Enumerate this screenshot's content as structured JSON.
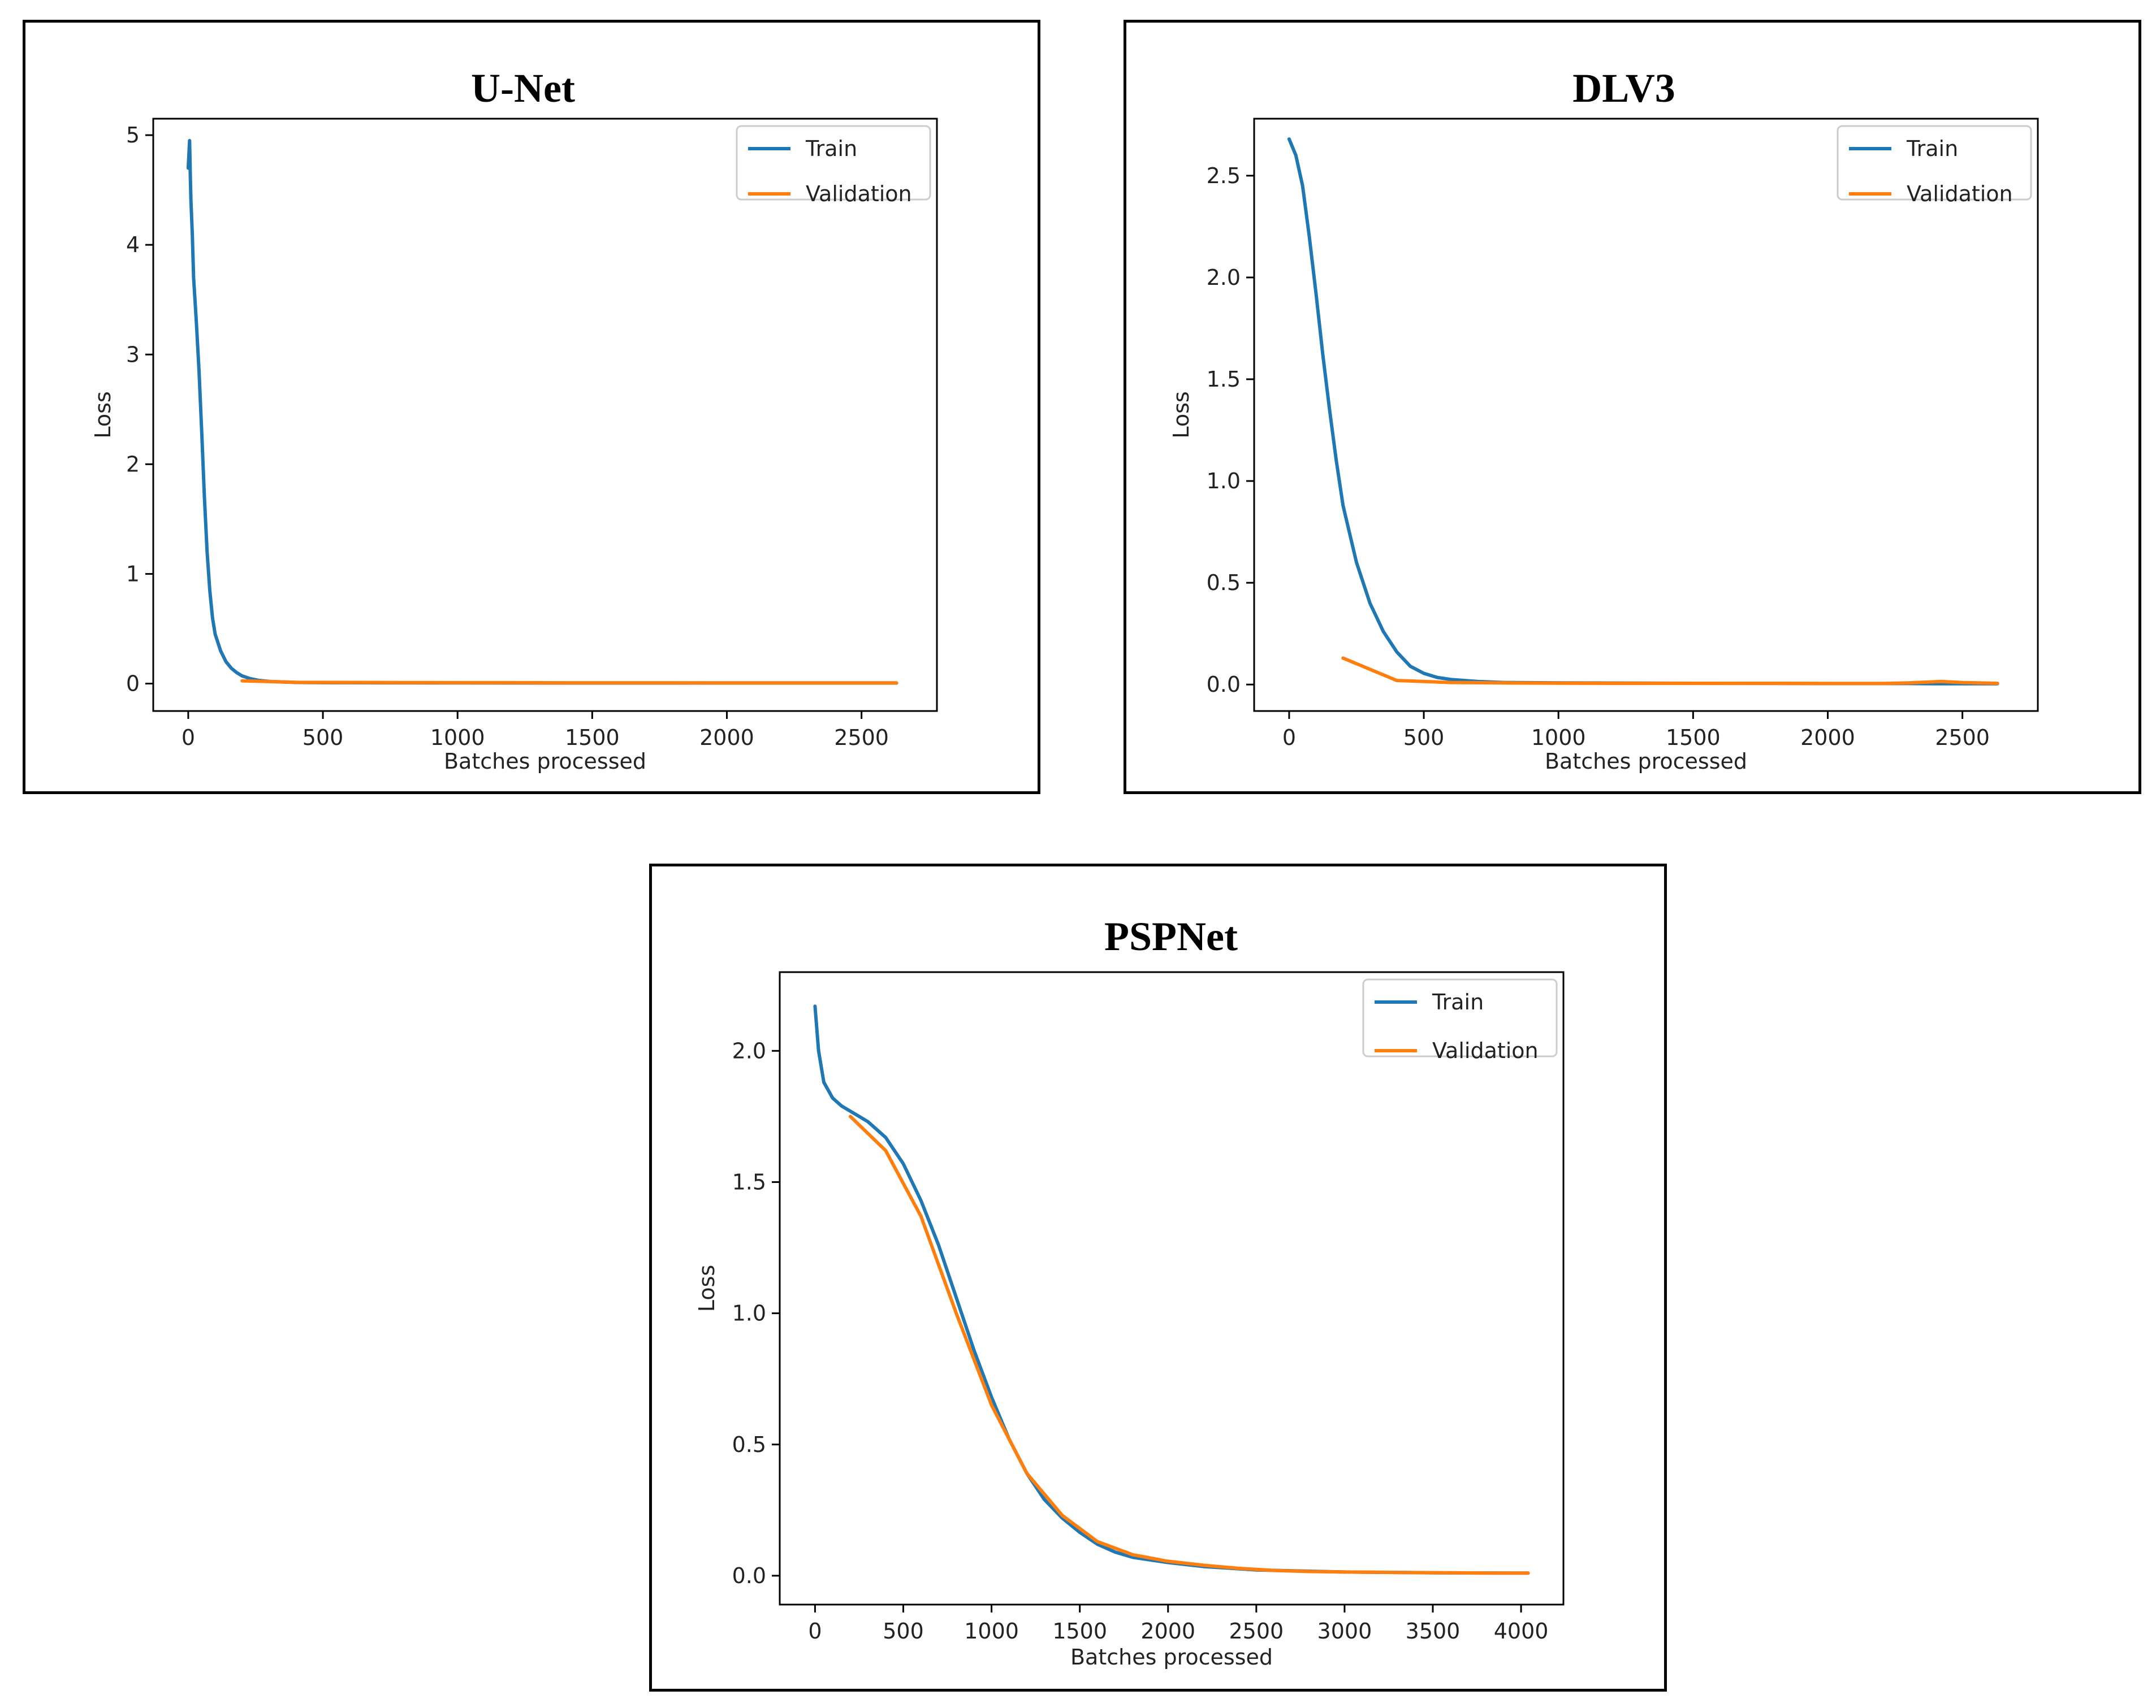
{
  "chart_data": [
    {
      "type": "line",
      "title": "U-Net",
      "xlabel": "Batches processed",
      "ylabel": "Loss",
      "xlim": [
        -130,
        2780
      ],
      "ylim": [
        -0.25,
        5.15
      ],
      "xticks": [
        "0",
        "500",
        "1000",
        "1500",
        "2000",
        "2500"
      ],
      "yticks": [
        "0",
        "1",
        "2",
        "3",
        "4",
        "5"
      ],
      "legend": "top-right",
      "series": [
        {
          "name": "Train",
          "color": "#1f77b4",
          "x": [
            0,
            5,
            8,
            10,
            15,
            20,
            30,
            40,
            50,
            60,
            70,
            80,
            90,
            100,
            120,
            140,
            160,
            180,
            200,
            230,
            260,
            300,
            350,
            400,
            500,
            700,
            1000,
            1500,
            2000,
            2500,
            2630
          ],
          "y": [
            4.7,
            4.95,
            4.6,
            4.4,
            4.1,
            3.7,
            3.3,
            2.85,
            2.3,
            1.7,
            1.2,
            0.85,
            0.6,
            0.45,
            0.3,
            0.2,
            0.14,
            0.1,
            0.07,
            0.045,
            0.03,
            0.02,
            0.015,
            0.01,
            0.008,
            0.007,
            0.006,
            0.005,
            0.005,
            0.005,
            0.005
          ]
        },
        {
          "name": "Validation",
          "color": "#ff7f0e",
          "x": [
            200,
            400,
            600,
            800,
            1000,
            1200,
            1400,
            1600,
            1800,
            2000,
            2200,
            2400,
            2630
          ],
          "y": [
            0.025,
            0.012,
            0.01,
            0.009,
            0.008,
            0.008,
            0.007,
            0.007,
            0.007,
            0.006,
            0.006,
            0.006,
            0.006
          ]
        }
      ]
    },
    {
      "type": "line",
      "title": "DLV3",
      "xlabel": "Batches processed",
      "ylabel": "Loss",
      "xlim": [
        -130,
        2780
      ],
      "ylim": [
        -0.13,
        2.78
      ],
      "xticks": [
        "0",
        "500",
        "1000",
        "1500",
        "2000",
        "2500"
      ],
      "yticks": [
        "0.0",
        "0.5",
        "1.0",
        "1.5",
        "2.0",
        "2.5"
      ],
      "legend": "top-right",
      "series": [
        {
          "name": "Train",
          "color": "#1f77b4",
          "x": [
            0,
            25,
            50,
            75,
            100,
            125,
            150,
            175,
            200,
            250,
            300,
            350,
            400,
            450,
            500,
            550,
            600,
            700,
            800,
            1000,
            1500,
            2000,
            2300,
            2400,
            2500,
            2630
          ],
          "y": [
            2.68,
            2.6,
            2.45,
            2.2,
            1.92,
            1.62,
            1.35,
            1.1,
            0.88,
            0.6,
            0.4,
            0.26,
            0.16,
            0.09,
            0.055,
            0.035,
            0.025,
            0.015,
            0.01,
            0.008,
            0.006,
            0.005,
            0.005,
            0.004,
            0.004,
            0.004
          ]
        },
        {
          "name": "Validation",
          "color": "#ff7f0e",
          "x": [
            200,
            400,
            600,
            800,
            1000,
            1200,
            1400,
            1600,
            1800,
            2000,
            2200,
            2300,
            2420,
            2500,
            2630
          ],
          "y": [
            0.13,
            0.02,
            0.01,
            0.008,
            0.007,
            0.006,
            0.006,
            0.006,
            0.006,
            0.005,
            0.005,
            0.008,
            0.015,
            0.01,
            0.006
          ]
        }
      ]
    },
    {
      "type": "line",
      "title": "PSPNet",
      "xlabel": "Batches processed",
      "ylabel": "Loss",
      "xlim": [
        -200,
        4240
      ],
      "ylim": [
        -0.11,
        2.3
      ],
      "xticks": [
        "0",
        "500",
        "1000",
        "1500",
        "2000",
        "2500",
        "3000",
        "3500",
        "4000"
      ],
      "yticks": [
        "0.0",
        "0.5",
        "1.0",
        "1.5",
        "2.0"
      ],
      "legend": "top-right",
      "series": [
        {
          "name": "Train",
          "color": "#1f77b4",
          "x": [
            0,
            20,
            50,
            100,
            150,
            200,
            300,
            400,
            500,
            600,
            700,
            800,
            900,
            1000,
            1100,
            1200,
            1300,
            1400,
            1500,
            1600,
            1700,
            1800,
            2000,
            2200,
            2500,
            3000,
            3500,
            4000,
            4040
          ],
          "y": [
            2.17,
            2.0,
            1.88,
            1.82,
            1.79,
            1.77,
            1.73,
            1.67,
            1.57,
            1.43,
            1.26,
            1.06,
            0.86,
            0.68,
            0.52,
            0.39,
            0.29,
            0.22,
            0.165,
            0.12,
            0.09,
            0.07,
            0.05,
            0.035,
            0.022,
            0.014,
            0.011,
            0.01,
            0.01
          ]
        },
        {
          "name": "Validation",
          "color": "#ff7f0e",
          "x": [
            200,
            400,
            600,
            800,
            1000,
            1200,
            1400,
            1600,
            1800,
            2000,
            2200,
            2400,
            2600,
            2800,
            3000,
            3200,
            3400,
            3600,
            3800,
            4040
          ],
          "y": [
            1.75,
            1.62,
            1.37,
            1.0,
            0.65,
            0.39,
            0.23,
            0.13,
            0.08,
            0.055,
            0.04,
            0.028,
            0.02,
            0.016,
            0.014,
            0.013,
            0.012,
            0.011,
            0.01,
            0.01
          ]
        }
      ]
    }
  ]
}
